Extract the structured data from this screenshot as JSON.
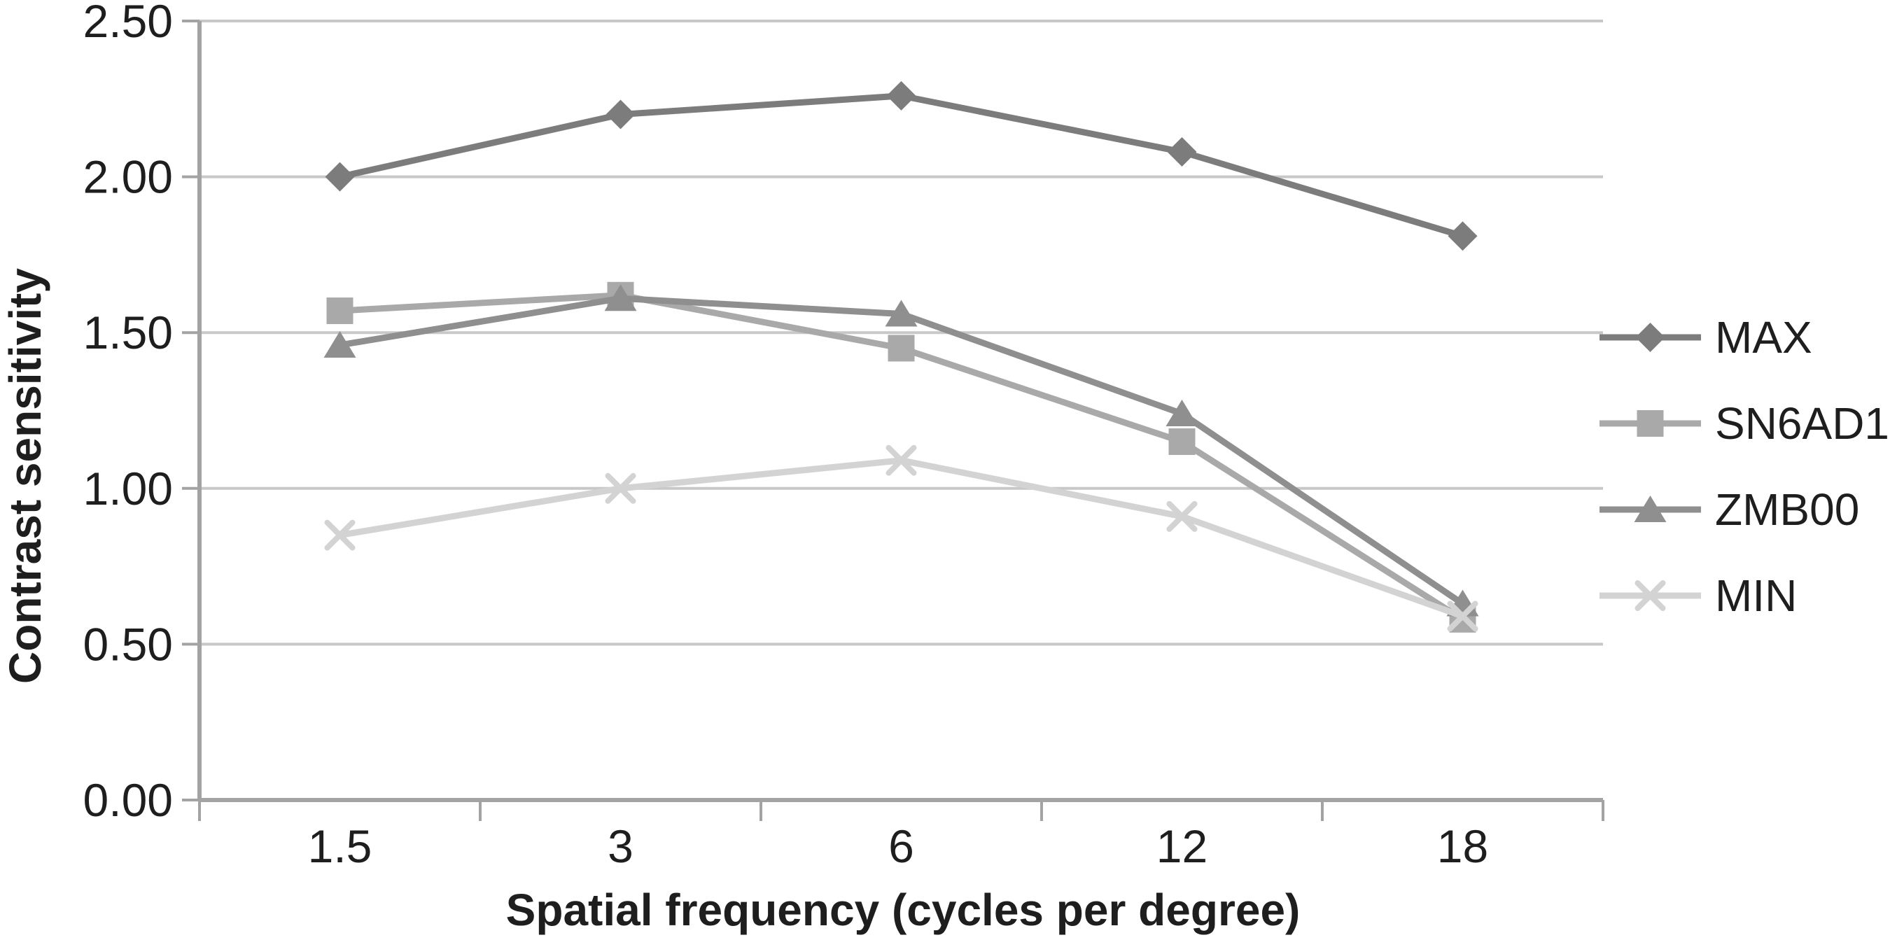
{
  "figure": {
    "background": "#ffffff"
  },
  "chart_data": {
    "type": "line",
    "title": "",
    "xlabel": "Spatial frequency (cycles per degree)",
    "ylabel": "Contrast sensitivity",
    "categories": [
      "1.5",
      "3",
      "6",
      "12",
      "18"
    ],
    "x_values": [
      1.5,
      3,
      6,
      12,
      18
    ],
    "series": [
      {
        "name": "MAX",
        "marker": "diamond",
        "color": "#7c7c7c",
        "values": [
          2.0,
          2.2,
          2.26,
          2.08,
          1.81
        ]
      },
      {
        "name": "SN6AD1",
        "marker": "square",
        "color": "#a9a9a9",
        "values": [
          1.57,
          1.62,
          1.45,
          1.15,
          0.58
        ]
      },
      {
        "name": "ZMB00",
        "marker": "triangle",
        "color": "#8f8f8f",
        "values": [
          1.46,
          1.61,
          1.56,
          1.24,
          0.63
        ]
      },
      {
        "name": "MIN",
        "marker": "x",
        "color": "#d3d3d3",
        "values": [
          0.85,
          1.0,
          1.09,
          0.91,
          0.59
        ]
      }
    ],
    "ylim": [
      0,
      2.5
    ],
    "yticks": [
      0,
      0.5,
      1,
      1.5,
      2,
      2.5
    ],
    "ytick_labels": [
      "0.00",
      "0.50",
      "1.00",
      "1.50",
      "2.00",
      "2.50"
    ],
    "grid": true,
    "legend_position": "right",
    "colors": {
      "axis": "#a3a3a3",
      "grid": "#c8c8c8",
      "text": "#1e1e1e",
      "background": "#ffffff"
    }
  }
}
